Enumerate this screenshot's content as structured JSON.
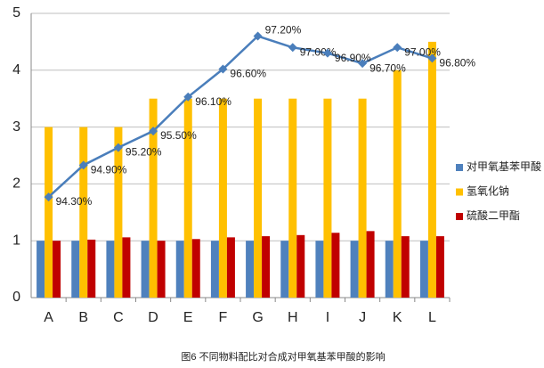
{
  "chart_data": {
    "type": "bar_line",
    "caption": "图6 不同物料配比对合成对甲氧基苯甲酸的影响",
    "categories": [
      "A",
      "B",
      "C",
      "D",
      "E",
      "F",
      "G",
      "H",
      "I",
      "J",
      "K",
      "L"
    ],
    "series": [
      {
        "name": "对甲氧基苯甲酸",
        "color": "#4f81bd",
        "values": [
          1,
          1,
          1,
          1,
          1,
          1,
          1,
          1,
          1,
          1,
          1,
          1
        ]
      },
      {
        "name": "氢氧化钠",
        "color": "#ffc000",
        "values": [
          3,
          3,
          3,
          3.5,
          3.5,
          3.5,
          3.5,
          3.5,
          3.5,
          3.5,
          4,
          4.5
        ]
      },
      {
        "name": "硫酸二甲酯",
        "color": "#c00000",
        "values": [
          1,
          1.02,
          1.06,
          1,
          1.03,
          1.06,
          1.08,
          1.1,
          1.14,
          1.17,
          1.08,
          1.08
        ]
      }
    ],
    "line": {
      "color": "#4a7ebb",
      "values": [
        1.77,
        2.33,
        2.64,
        2.93,
        3.53,
        4.02,
        4.6,
        4.4,
        4.3,
        4.12,
        4.4,
        4.21
      ],
      "annotations": [
        "94.30%",
        "94.90%",
        "95.20%",
        "95.50%",
        "96.10%",
        "96.60%",
        "97.20%",
        "97.00%",
        "96.90%",
        "96.70%",
        "97.00%",
        "96.80%"
      ]
    },
    "ylim": [
      0,
      5
    ],
    "yticks": [
      0,
      1,
      2,
      3,
      4,
      5
    ],
    "grid": true
  }
}
